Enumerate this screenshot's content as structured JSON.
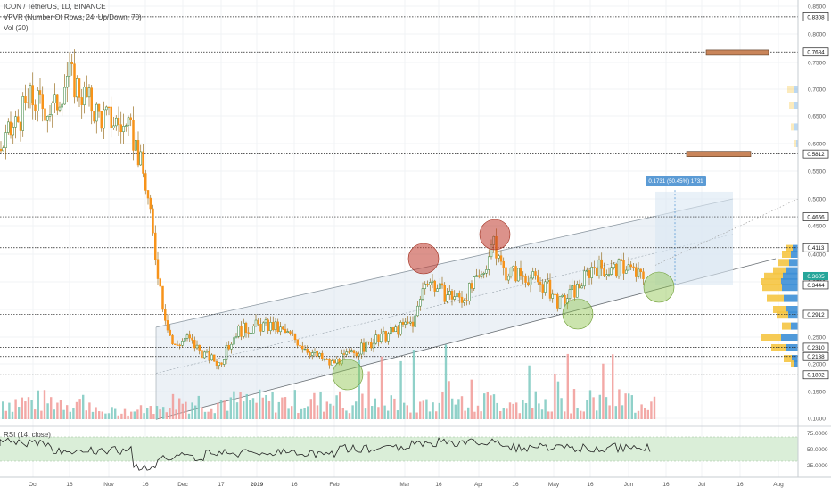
{
  "header": {
    "symbol_line": "ICON / TetherUS, 1D, BINANCE",
    "vpvr_line": "VPVR (Number Of Rows, 24, Up/Down, 70)",
    "vol_line": "Vol (20)"
  },
  "rsi": {
    "label": "RSI (14, close)",
    "ticks": [
      "75.0000",
      "50.0000",
      "25.0000"
    ]
  },
  "x_ticks": [
    "Oct",
    "16",
    "Nov",
    "16",
    "Dec",
    "17",
    "2019",
    "16",
    "Feb",
    "Mar",
    "16",
    "Apr",
    "16",
    "May",
    "16",
    "Jun",
    "16",
    "Jul",
    "16",
    "Aug"
  ],
  "price_ticks": [
    "0.8500",
    "0.8000",
    "0.7500",
    "0.7000",
    "0.6500",
    "0.6000",
    "0.5500",
    "0.5000",
    "0.4500",
    "0.4000",
    "0.3500",
    "0.2500",
    "0.2000",
    "0.1500",
    "0.1000"
  ],
  "level_badges": [
    "0.8308",
    "0.7684",
    "0.5812",
    "0.4666",
    "0.4113",
    "0.3444",
    "0.2912",
    "0.2310",
    "0.2138",
    "0.1802"
  ],
  "current_price": "0.3605",
  "measure_label": "0.1731 (50.45%) 1731",
  "colors": {
    "up": "#26a69a",
    "down": "#ef5350",
    "candle": "#f7931a",
    "wick": "#8a5a00",
    "channel": "#dce6ee",
    "rsi_band": "#d6ecd4",
    "badge_bg": "#ffffff",
    "current_bg": "#26a69a"
  },
  "chart_data": {
    "type": "candlestick",
    "title": "ICON / TetherUS, 1D, BINANCE",
    "ylim": [
      0.075,
      0.86
    ],
    "key_levels": [
      0.8308,
      0.7684,
      0.5812,
      0.4666,
      0.4113,
      0.3444,
      0.2912,
      0.231,
      0.2138,
      0.1802
    ],
    "close_path": [
      {
        "x": "Sep 22",
        "close": 0.59
      },
      {
        "x": "Oct 1",
        "close": 0.68
      },
      {
        "x": "Oct 10",
        "close": 0.66
      },
      {
        "x": "Oct 16",
        "close": 0.73
      },
      {
        "x": "Oct 22",
        "close": 0.69
      },
      {
        "x": "Oct 29",
        "close": 0.65
      },
      {
        "x": "Nov 5",
        "close": 0.64
      },
      {
        "x": "Nov 12",
        "close": 0.61
      },
      {
        "x": "Nov 17",
        "close": 0.52
      },
      {
        "x": "Nov 20",
        "close": 0.42
      },
      {
        "x": "Nov 24",
        "close": 0.3
      },
      {
        "x": "Nov 28",
        "close": 0.23
      },
      {
        "x": "Dec 3",
        "close": 0.25
      },
      {
        "x": "Dec 10",
        "close": 0.22
      },
      {
        "x": "Dec 17",
        "close": 0.2
      },
      {
        "x": "Dec 24",
        "close": 0.26
      },
      {
        "x": "Jan 1",
        "close": 0.27
      },
      {
        "x": "Jan 8",
        "close": 0.27
      },
      {
        "x": "Jan 16",
        "close": 0.25
      },
      {
        "x": "Jan 24",
        "close": 0.22
      },
      {
        "x": "Feb 1",
        "close": 0.2
      },
      {
        "x": "Feb 10",
        "close": 0.22
      },
      {
        "x": "Feb 18",
        "close": 0.24
      },
      {
        "x": "Feb 26",
        "close": 0.26
      },
      {
        "x": "Mar 4",
        "close": 0.28
      },
      {
        "x": "Mar 9",
        "close": 0.36
      },
      {
        "x": "Mar 16",
        "close": 0.33
      },
      {
        "x": "Mar 24",
        "close": 0.32
      },
      {
        "x": "Apr 1",
        "close": 0.36
      },
      {
        "x": "Apr 5",
        "close": 0.42
      },
      {
        "x": "Apr 10",
        "close": 0.37
      },
      {
        "x": "Apr 20",
        "close": 0.36
      },
      {
        "x": "Apr 28",
        "close": 0.34
      },
      {
        "x": "May 5",
        "close": 0.31
      },
      {
        "x": "May 12",
        "close": 0.34
      },
      {
        "x": "May 18",
        "close": 0.38
      },
      {
        "x": "May 25",
        "close": 0.37
      },
      {
        "x": "Jun 1",
        "close": 0.38
      },
      {
        "x": "Jun 5",
        "close": 0.36
      }
    ],
    "volume_ticks": [
      "0.1500",
      "0.1000"
    ],
    "annotations": {
      "channel": "ascending parallel channel",
      "resistance_touches": [
        "Mar 9",
        "Apr 5"
      ],
      "support_touches": [
        "Feb 1",
        "May 10",
        "Jun 10"
      ],
      "measure": "0.1731 (50.45%) 1731"
    }
  }
}
